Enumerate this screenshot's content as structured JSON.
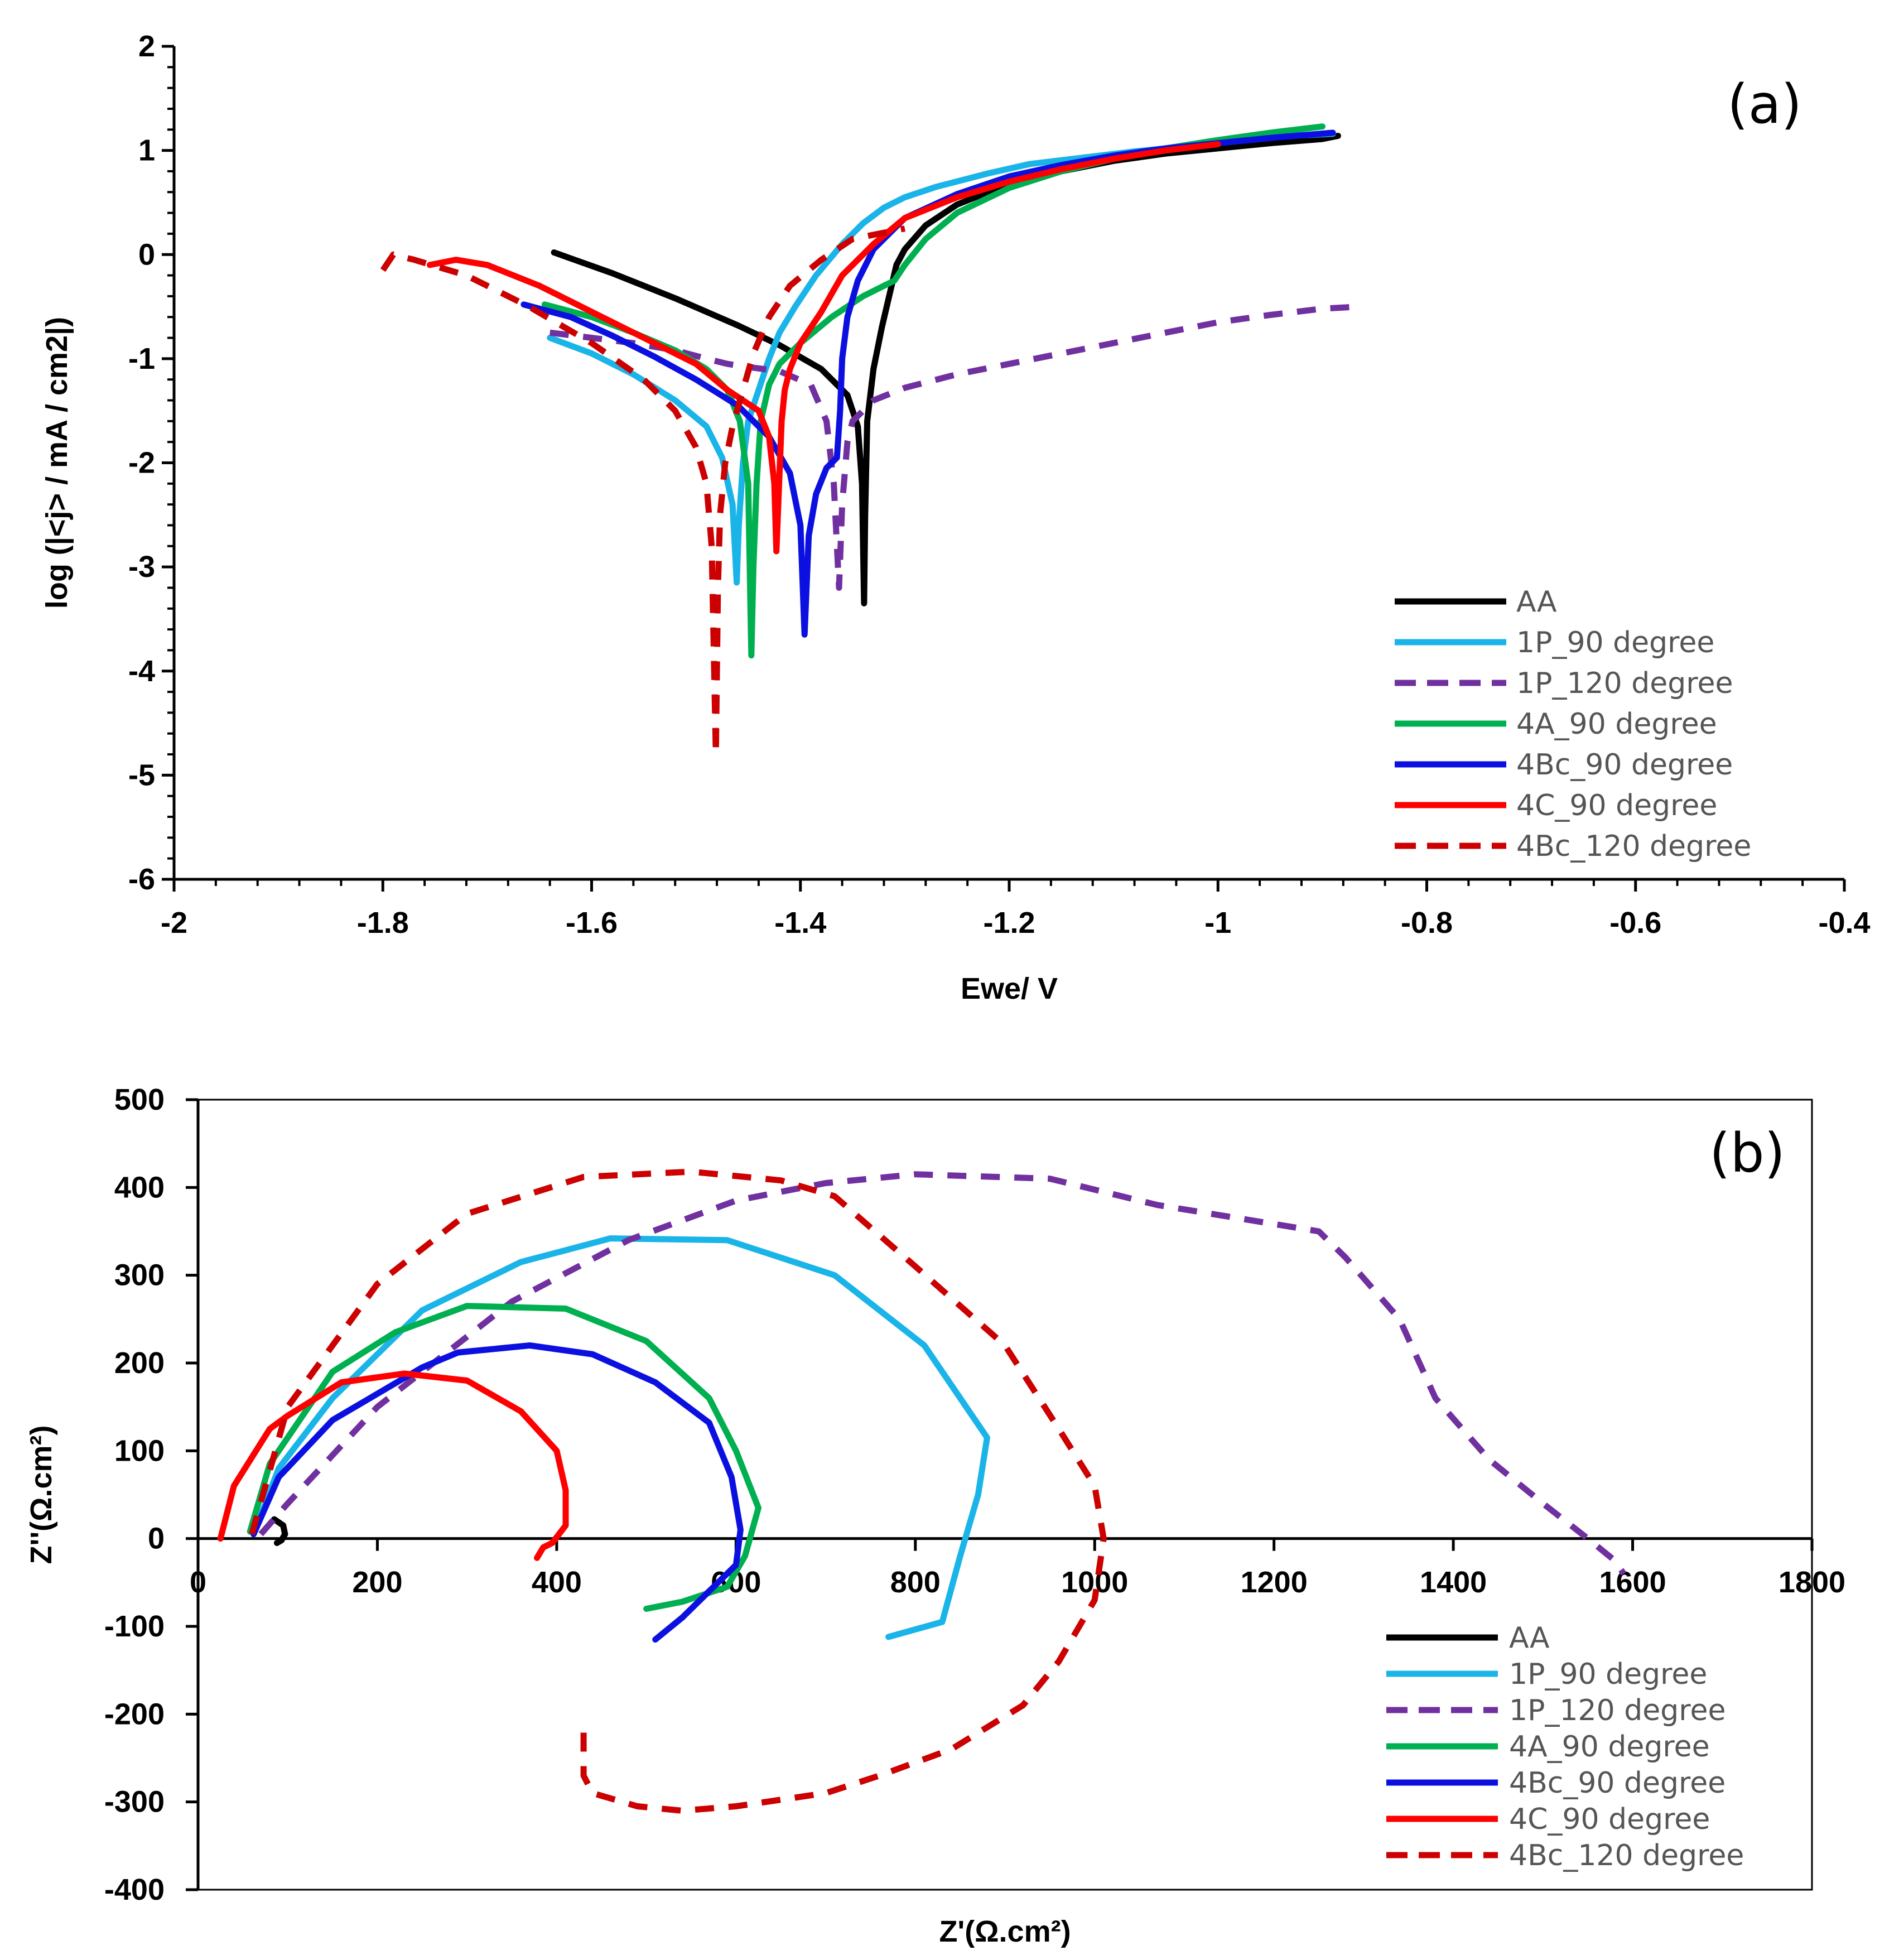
{
  "chart_data": [
    {
      "id": "a",
      "type": "line",
      "panel_label": "(a)",
      "xlabel": "Ewe/ V",
      "ylabel": "log (|<j> / mA / cm2|)",
      "xlim": [
        -2,
        -0.4
      ],
      "ylim": [
        -6,
        2
      ],
      "x_ticks": [
        -2,
        -1.8,
        -1.6,
        -1.4,
        -1.2,
        -1,
        -0.8,
        -0.6,
        -0.4
      ],
      "x_tick_labels": [
        "-2",
        "-1.8",
        "-1.6",
        "-1.4",
        "-1.2",
        "-1",
        "-0.8",
        "-0.6",
        "-0.4"
      ],
      "y_ticks": [
        2,
        1,
        0,
        -1,
        -2,
        -3,
        -4,
        -5,
        -6
      ],
      "y_tick_labels": [
        "2",
        "1",
        "0",
        "-1",
        "-2",
        "-3",
        "-4",
        "-5",
        "-6"
      ],
      "legend_position": "bottom-right",
      "series": [
        {
          "name": "AA",
          "color": "#000000",
          "dash": "solid",
          "x": [
            -1.636,
            -1.58,
            -1.52,
            -1.46,
            -1.42,
            -1.38,
            -1.355,
            -1.345,
            -1.341,
            -1.339,
            -1.338,
            -1.336,
            -1.33,
            -1.322,
            -1.315,
            -1.308,
            -1.3,
            -1.28,
            -1.25,
            -1.2,
            -1.15,
            -1.1,
            -1.05,
            -1.0,
            -0.95,
            -0.9,
            -0.885
          ],
          "y": [
            0.02,
            -0.18,
            -0.42,
            -0.68,
            -0.87,
            -1.1,
            -1.35,
            -1.65,
            -2.2,
            -3.35,
            -2.5,
            -1.6,
            -1.1,
            -0.7,
            -0.4,
            -0.1,
            0.05,
            0.28,
            0.48,
            0.68,
            0.8,
            0.9,
            0.97,
            1.02,
            1.07,
            1.11,
            1.14
          ]
        },
        {
          "name": "1P_90 degree",
          "color": "#1ab4e8",
          "dash": "solid",
          "x": [
            -1.64,
            -1.6,
            -1.56,
            -1.52,
            -1.49,
            -1.475,
            -1.465,
            -1.461,
            -1.459,
            -1.455,
            -1.45,
            -1.44,
            -1.43,
            -1.42,
            -1.405,
            -1.385,
            -1.36,
            -1.34,
            -1.32,
            -1.3,
            -1.27,
            -1.22,
            -1.18,
            -1.13,
            -1.08,
            -1.03,
            -0.98,
            -0.93,
            -0.89
          ],
          "y": [
            -0.8,
            -0.95,
            -1.15,
            -1.4,
            -1.65,
            -1.95,
            -2.4,
            -3.15,
            -2.6,
            -2.0,
            -1.6,
            -1.3,
            -1.0,
            -0.75,
            -0.5,
            -0.2,
            0.1,
            0.3,
            0.45,
            0.55,
            0.65,
            0.78,
            0.87,
            0.93,
            0.99,
            1.04,
            1.09,
            1.14,
            1.16
          ]
        },
        {
          "name": "1P_120 degree",
          "color": "#7030a0",
          "dash": "dashed",
          "x": [
            -1.64,
            -1.6,
            -1.56,
            -1.52,
            -1.49,
            -1.47,
            -1.45,
            -1.42,
            -1.39,
            -1.375,
            -1.368,
            -1.363,
            -1.36,
            -1.355,
            -1.35,
            -1.34,
            -1.33,
            -1.3,
            -1.25,
            -1.2,
            -1.15,
            -1.1,
            -1.05,
            -1.0,
            -0.95,
            -0.9,
            -0.865
          ],
          "y": [
            -0.75,
            -0.8,
            -0.85,
            -0.92,
            -1.0,
            -1.05,
            -1.08,
            -1.12,
            -1.25,
            -1.6,
            -2.2,
            -3.2,
            -2.4,
            -1.8,
            -1.6,
            -1.5,
            -1.4,
            -1.28,
            -1.15,
            -1.05,
            -0.95,
            -0.85,
            -0.75,
            -0.65,
            -0.58,
            -0.52,
            -0.5
          ]
        },
        {
          "name": "4A_90 degree",
          "color": "#00b050",
          "dash": "solid",
          "x": [
            -1.645,
            -1.6,
            -1.56,
            -1.52,
            -1.49,
            -1.47,
            -1.458,
            -1.45,
            -1.447,
            -1.445,
            -1.442,
            -1.438,
            -1.43,
            -1.42,
            -1.4,
            -1.37,
            -1.34,
            -1.31,
            -1.3,
            -1.28,
            -1.25,
            -1.2,
            -1.15,
            -1.1,
            -1.05,
            -1.0,
            -0.95,
            -0.9
          ],
          "y": [
            -0.48,
            -0.6,
            -0.75,
            -0.92,
            -1.1,
            -1.3,
            -1.6,
            -2.2,
            -3.85,
            -3.0,
            -2.2,
            -1.6,
            -1.25,
            -1.05,
            -0.85,
            -0.6,
            -0.4,
            -0.25,
            -0.1,
            0.15,
            0.4,
            0.64,
            0.8,
            0.92,
            1.02,
            1.1,
            1.17,
            1.23
          ]
        },
        {
          "name": "4Bc_90 degree",
          "color": "#0b10e0",
          "dash": "solid",
          "x": [
            -1.665,
            -1.62,
            -1.58,
            -1.54,
            -1.5,
            -1.46,
            -1.43,
            -1.41,
            -1.4,
            -1.396,
            -1.392,
            -1.385,
            -1.375,
            -1.365,
            -1.362,
            -1.36,
            -1.355,
            -1.345,
            -1.33,
            -1.3,
            -1.25,
            -1.2,
            -1.15,
            -1.1,
            -1.05,
            -1.0,
            -0.95,
            -0.89
          ],
          "y": [
            -0.48,
            -0.6,
            -0.78,
            -0.98,
            -1.2,
            -1.45,
            -1.75,
            -2.1,
            -2.6,
            -3.65,
            -2.7,
            -2.3,
            -2.05,
            -1.95,
            -1.5,
            -1.0,
            -0.6,
            -0.25,
            0.05,
            0.35,
            0.58,
            0.75,
            0.86,
            0.95,
            1.02,
            1.07,
            1.12,
            1.17
          ]
        },
        {
          "name": "4C_90 degree",
          "color": "#ff0000",
          "dash": "solid",
          "x": [
            -1.755,
            -1.73,
            -1.7,
            -1.65,
            -1.6,
            -1.55,
            -1.5,
            -1.47,
            -1.44,
            -1.43,
            -1.425,
            -1.423,
            -1.42,
            -1.418,
            -1.415,
            -1.41,
            -1.4,
            -1.38,
            -1.36,
            -1.33,
            -1.3,
            -1.25,
            -1.2,
            -1.15,
            -1.1,
            -1.05,
            -1.0
          ],
          "y": [
            -0.1,
            -0.05,
            -0.1,
            -0.3,
            -0.55,
            -0.8,
            -1.05,
            -1.3,
            -1.5,
            -1.75,
            -2.2,
            -2.85,
            -2.1,
            -1.6,
            -1.3,
            -1.1,
            -0.85,
            -0.55,
            -0.2,
            0.1,
            0.35,
            0.55,
            0.7,
            0.82,
            0.92,
            1.0,
            1.06
          ]
        },
        {
          "name": "4Bc_120 degree",
          "color": "#cc0000",
          "dash": "dashed",
          "x": [
            -1.8,
            -1.79,
            -1.77,
            -1.72,
            -1.66,
            -1.6,
            -1.55,
            -1.52,
            -1.5,
            -1.49,
            -1.485,
            -1.481,
            -1.479,
            -1.477,
            -1.472,
            -1.465,
            -1.455,
            -1.445,
            -1.43,
            -1.41,
            -1.38,
            -1.35,
            -1.3
          ],
          "y": [
            -0.15,
            0.0,
            -0.05,
            -0.2,
            -0.5,
            -0.85,
            -1.2,
            -1.5,
            -1.85,
            -2.2,
            -2.8,
            -4.8,
            -3.2,
            -2.5,
            -2.0,
            -1.65,
            -1.3,
            -0.95,
            -0.6,
            -0.3,
            -0.05,
            0.15,
            0.25
          ]
        }
      ],
      "legend": [
        "AA",
        "1P_90 degree",
        "1P_120 degree",
        "4A_90 degree",
        "4Bc_90 degree",
        "4C_90 degree",
        "4Bc_120 degree"
      ]
    },
    {
      "id": "b",
      "type": "line",
      "panel_label": "(b)",
      "xlabel": "Z'(Ω.cm²)",
      "ylabel": "Z''(Ω.cm²)",
      "xlim": [
        0,
        1800
      ],
      "ylim": [
        -400,
        500
      ],
      "x_ticks": [
        0,
        200,
        400,
        600,
        800,
        1000,
        1200,
        1400,
        1600,
        1800
      ],
      "x_tick_labels": [
        "0",
        "200",
        "400",
        "600",
        "800",
        "1000",
        "1200",
        "1400",
        "1600",
        "1800"
      ],
      "y_ticks": [
        500,
        400,
        300,
        200,
        100,
        0,
        -100,
        -200,
        -300,
        -400
      ],
      "y_tick_labels": [
        "500",
        "400",
        "300",
        "200",
        "100",
        "0",
        "-100",
        "-200",
        "-300",
        "-400"
      ],
      "legend_position": "bottom-right",
      "series": [
        {
          "name": "AA",
          "color": "#000000",
          "dash": "solid",
          "x": [
            85,
            95,
            97,
            93,
            88
          ],
          "y": [
            22,
            15,
            5,
            -2,
            -5
          ]
        },
        {
          "name": "1P_90 degree",
          "color": "#1ab4e8",
          "dash": "solid",
          "x": [
            62,
            90,
            150,
            250,
            360,
            460,
            590,
            710,
            810,
            880,
            870,
            850,
            830,
            770
          ],
          "y": [
            5,
            80,
            160,
            260,
            315,
            342,
            340,
            300,
            220,
            115,
            50,
            -20,
            -95,
            -112
          ]
        },
        {
          "name": "1P_120 degree",
          "color": "#7030a0",
          "dash": "dashed",
          "x": [
            70,
            100,
            200,
            350,
            480,
            600,
            700,
            800,
            950,
            1070,
            1250,
            1280,
            1340,
            1380,
            1440,
            1500,
            1550,
            1580,
            1590
          ],
          "y": [
            5,
            40,
            150,
            270,
            340,
            385,
            405,
            415,
            410,
            380,
            350,
            320,
            250,
            160,
            90,
            40,
            0,
            -25,
            -40
          ]
        },
        {
          "name": "4A_90 degree",
          "color": "#00b050",
          "dash": "solid",
          "x": [
            58,
            80,
            150,
            220,
            300,
            410,
            500,
            570,
            600,
            625,
            610,
            590,
            540,
            500
          ],
          "y": [
            8,
            85,
            190,
            235,
            265,
            262,
            225,
            160,
            100,
            35,
            -20,
            -55,
            -72,
            -80
          ]
        },
        {
          "name": "4Bc_90 degree",
          "color": "#0b10e0",
          "dash": "solid",
          "x": [
            62,
            90,
            150,
            250,
            290,
            370,
            440,
            510,
            570,
            595,
            605,
            600,
            570,
            540,
            510
          ],
          "y": [
            5,
            70,
            135,
            195,
            212,
            220,
            210,
            178,
            132,
            70,
            10,
            -30,
            -60,
            -90,
            -115
          ]
        },
        {
          "name": "4C_90 degree",
          "color": "#ff0000",
          "dash": "solid",
          "x": [
            25,
            40,
            80,
            100,
            160,
            230,
            300,
            360,
            400,
            410,
            410,
            395,
            385,
            378
          ],
          "y": [
            0,
            60,
            125,
            140,
            178,
            188,
            180,
            145,
            100,
            55,
            15,
            -5,
            -10,
            -22
          ]
        },
        {
          "name": "4Bc_120 degree",
          "color": "#cc0000",
          "dash": "dashed",
          "x": [
            60,
            100,
            200,
            300,
            430,
            550,
            650,
            710,
            800,
            900,
            960,
            1000,
            1010,
            1000,
            960,
            920,
            840,
            760,
            700,
            600,
            540,
            490,
            440,
            430,
            430
          ],
          "y": [
            5,
            150,
            290,
            370,
            412,
            418,
            408,
            390,
            310,
            220,
            125,
            60,
            0,
            -70,
            -140,
            -190,
            -240,
            -270,
            -290,
            -305,
            -310,
            -305,
            -290,
            -270,
            -210
          ]
        }
      ],
      "legend": [
        "AA",
        "1P_90 degree",
        "1P_120 degree",
        "4A_90 degree",
        "4Bc_90 degree",
        "4C_90 degree",
        "4Bc_120 degree"
      ]
    }
  ]
}
